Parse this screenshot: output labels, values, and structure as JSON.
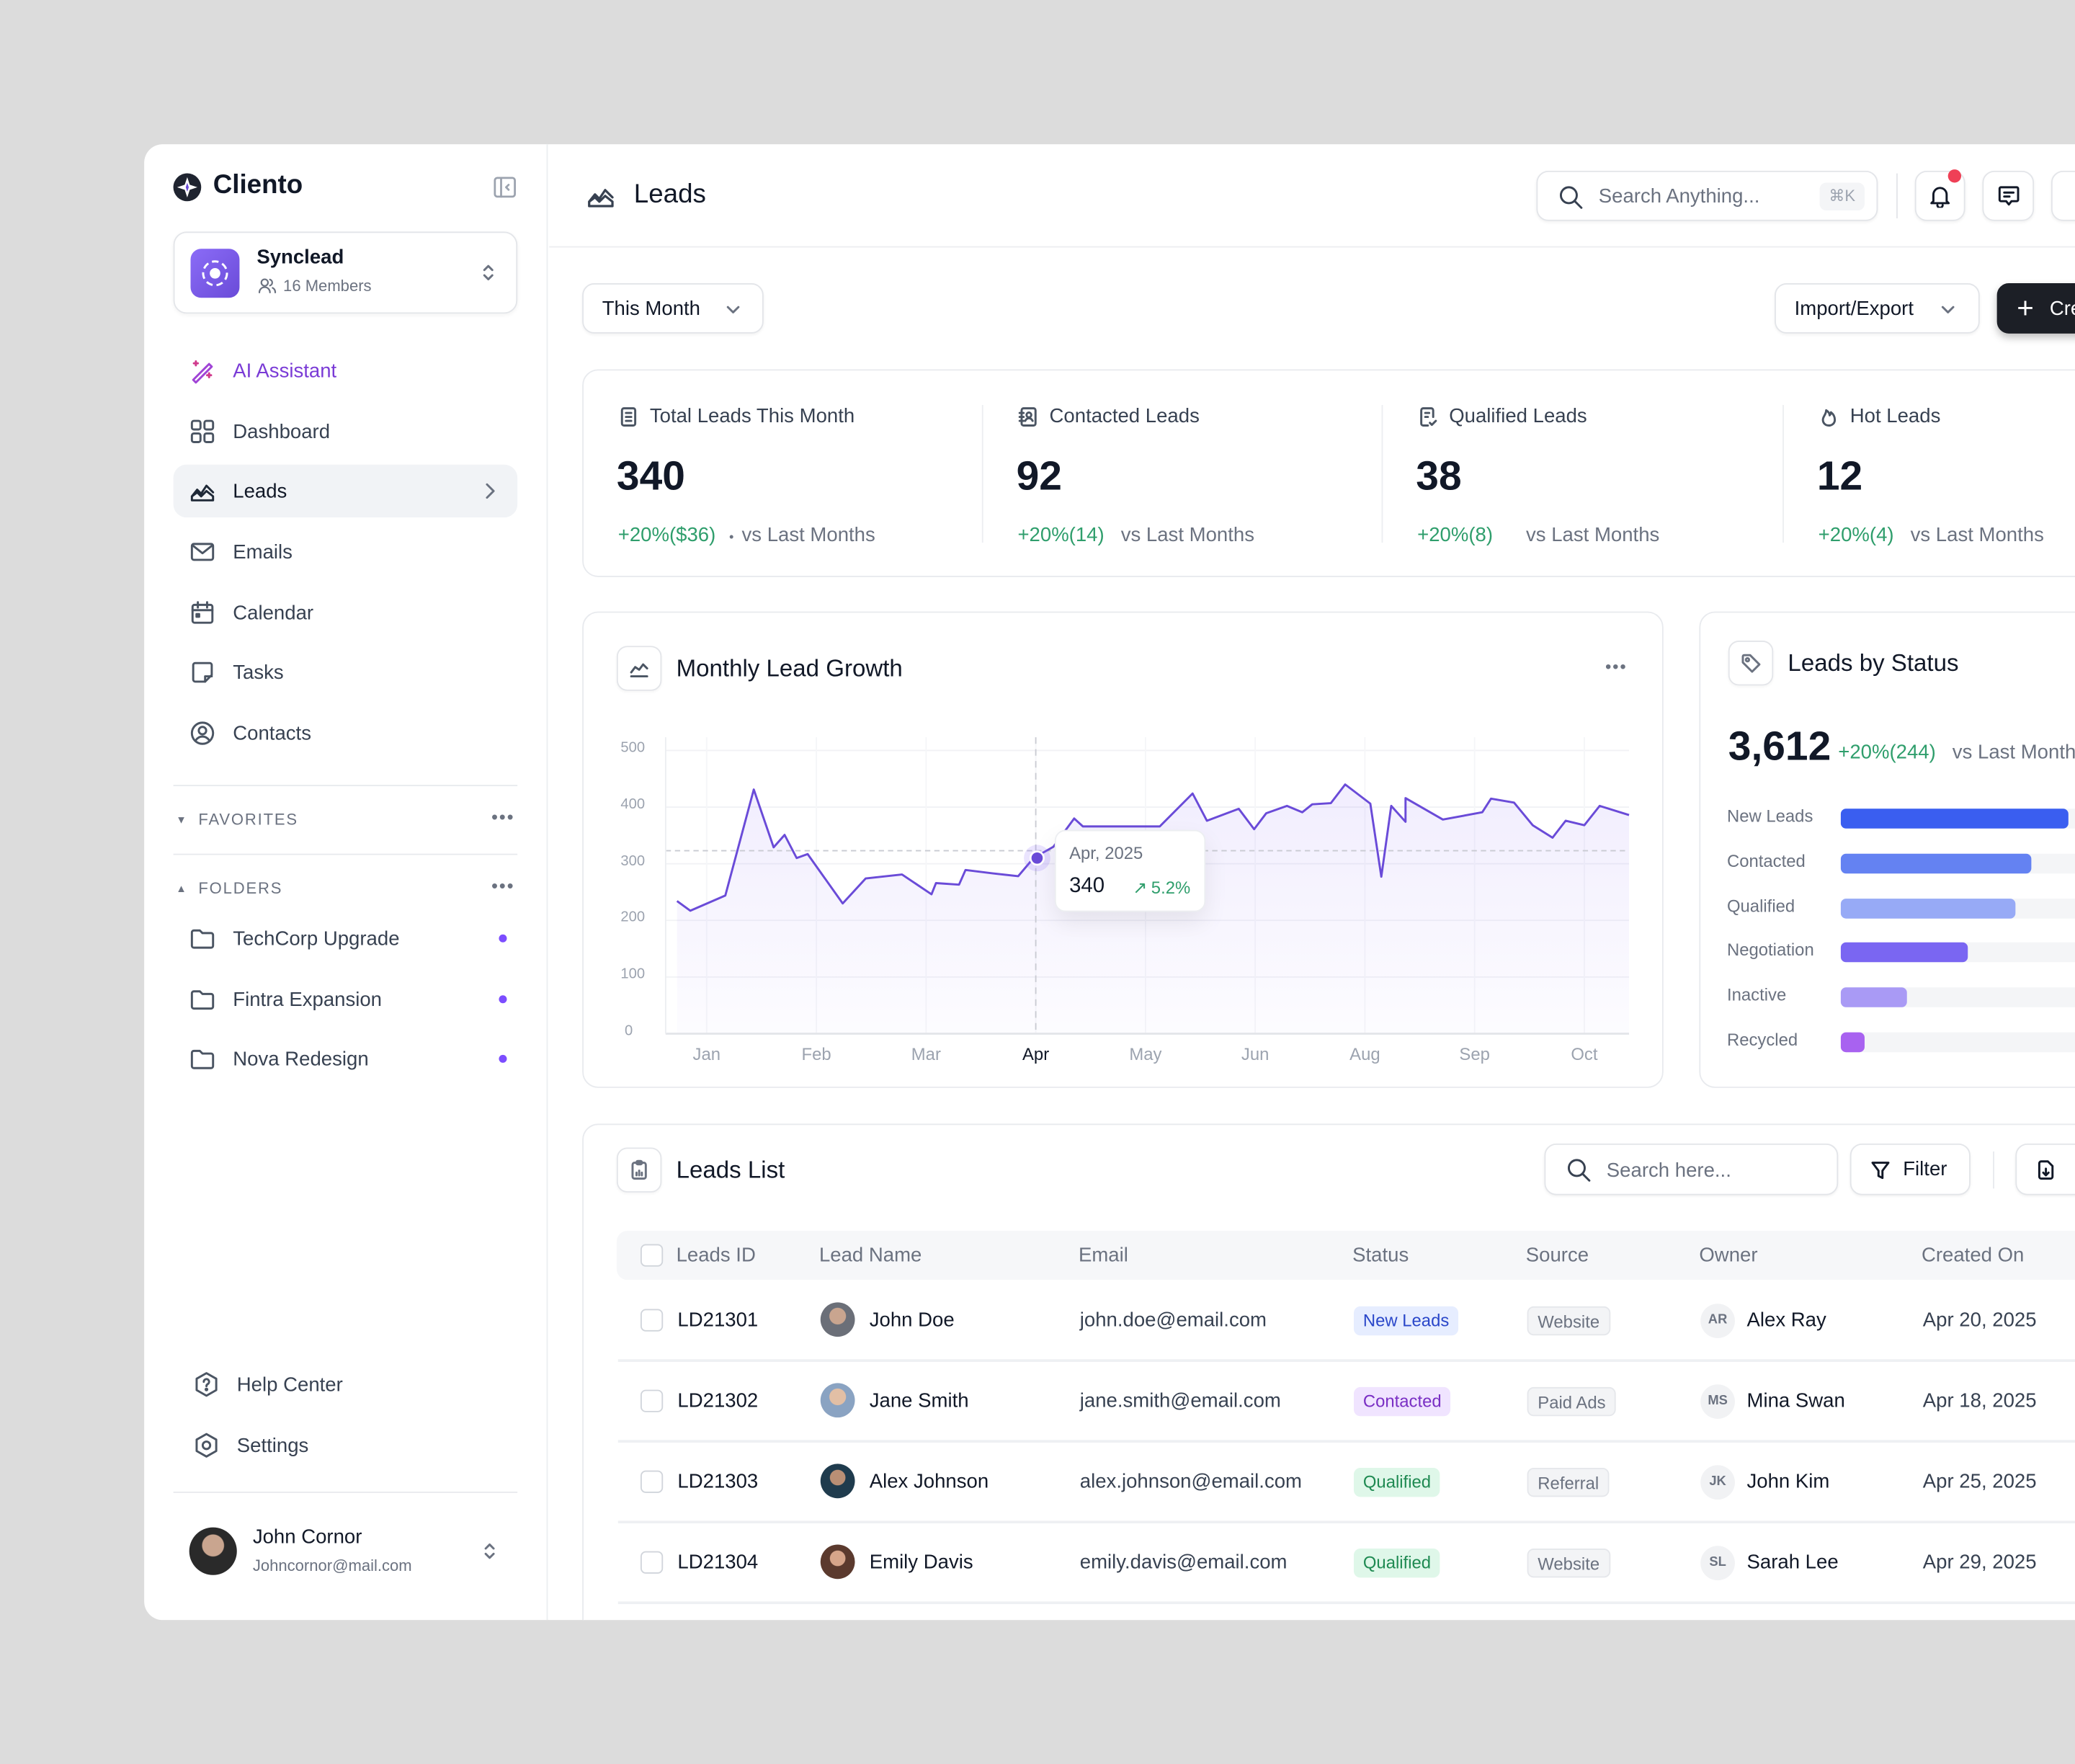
{
  "brand": {
    "name": "Cliento"
  },
  "workspace": {
    "name": "Synclead",
    "members": "16 Members"
  },
  "sidebar": {
    "items": [
      {
        "label": "AI Assistant",
        "icon": "magic-wand-icon"
      },
      {
        "label": "Dashboard",
        "icon": "grid-icon"
      },
      {
        "label": "Leads",
        "icon": "chart-area-icon"
      },
      {
        "label": "Emails",
        "icon": "mail-icon"
      },
      {
        "label": "Calendar",
        "icon": "calendar-icon"
      },
      {
        "label": "Tasks",
        "icon": "note-icon"
      },
      {
        "label": "Contacts",
        "icon": "user-circle-icon"
      }
    ],
    "favorites_label": "FAVORITES",
    "folders_label": "FOLDERS",
    "folders": [
      {
        "label": "TechCorp Upgrade"
      },
      {
        "label": "Fintra Expansion"
      },
      {
        "label": "Nova Redesign"
      }
    ],
    "help": "Help Center",
    "settings": "Settings",
    "user": {
      "name": "John Cornor",
      "email": "Johncornor@mail.com"
    }
  },
  "header": {
    "title": "Leads",
    "search_placeholder": "Search Anything...",
    "shortcut": "⌘K",
    "notification_color": "#ef4056"
  },
  "toolbar": {
    "period": "This Month",
    "import_export": "Import/Export",
    "create": "Create"
  },
  "stats": [
    {
      "label": "Total Leads This Month",
      "value": "340",
      "change": "+20%($36)",
      "bullet": "•",
      "suffix": "vs Last Months"
    },
    {
      "label": "Contacted Leads",
      "value": "92",
      "change": "+20%(14)",
      "suffix": "vs Last Months"
    },
    {
      "label": "Qualified Leads",
      "value": "38",
      "change": "+20%(8)",
      "suffix": "vs Last Months"
    },
    {
      "label": "Hot Leads",
      "value": "12",
      "change": "+20%(4)",
      "suffix": "vs Last Months"
    }
  ],
  "chart_data": [
    {
      "type": "area",
      "title": "Monthly Lead Growth",
      "x_ticks": [
        "Jan",
        "Feb",
        "Mar",
        "Apr",
        "May",
        "Jun",
        "Aug",
        "Sep",
        "Oct"
      ],
      "highlighted_tick": "Apr",
      "y_ticks": [
        0,
        100,
        200,
        300,
        400,
        500
      ],
      "ylim": [
        0,
        500
      ],
      "grid": true,
      "color": "#6a4bd8",
      "reference_value": 323,
      "points_month_index_value": [
        [
          -0.27,
          234
        ],
        [
          -0.15,
          217
        ],
        [
          0.17,
          244
        ],
        [
          0.43,
          431
        ],
        [
          0.61,
          329
        ],
        [
          0.71,
          351
        ],
        [
          0.82,
          310
        ],
        [
          0.92,
          317
        ],
        [
          1.24,
          230
        ],
        [
          1.45,
          274
        ],
        [
          1.78,
          281
        ],
        [
          2.05,
          246
        ],
        [
          2.09,
          266
        ],
        [
          2.3,
          263
        ],
        [
          2.36,
          289
        ],
        [
          2.61,
          283
        ],
        [
          2.84,
          278
        ],
        [
          2.98,
          310
        ],
        [
          3.16,
          330
        ],
        [
          3.35,
          380
        ],
        [
          3.43,
          366
        ],
        [
          4.13,
          366
        ],
        [
          4.43,
          424
        ],
        [
          4.56,
          376
        ],
        [
          4.85,
          397
        ],
        [
          4.99,
          361
        ],
        [
          5.1,
          389
        ],
        [
          5.29,
          402
        ],
        [
          5.43,
          391
        ],
        [
          5.52,
          405
        ],
        [
          5.69,
          407
        ],
        [
          5.82,
          440
        ],
        [
          6.05,
          406
        ],
        [
          6.15,
          277
        ],
        [
          6.24,
          402
        ],
        [
          6.37,
          374
        ],
        [
          6.37,
          416
        ],
        [
          6.71,
          378
        ],
        [
          7.07,
          391
        ],
        [
          7.15,
          415
        ],
        [
          7.36,
          408
        ],
        [
          7.53,
          368
        ],
        [
          7.71,
          346
        ],
        [
          7.83,
          376
        ],
        [
          8.0,
          368
        ],
        [
          8.14,
          402
        ],
        [
          8.41,
          386
        ]
      ],
      "tooltip": {
        "date": "Apr, 2025",
        "value": "340",
        "change": "5.2%"
      }
    },
    {
      "type": "bar",
      "orientation": "horizontal",
      "title": "Leads by Status",
      "total": "3,612",
      "change": "+20%(244)",
      "suffix": "vs Last Month",
      "categories": [
        "New Leads",
        "Contacted",
        "Qualified",
        "Negotiation",
        "Inactive",
        "Recycled"
      ],
      "values_percent": [
        86,
        72,
        66,
        48,
        25,
        9
      ],
      "colors": [
        "#3a5ef0",
        "#6482f2",
        "#97aaf6",
        "#7a66f2",
        "#a99af5",
        "#a862f0"
      ]
    }
  ],
  "leads_list": {
    "title": "Leads List",
    "search_placeholder": "Search here...",
    "filter": "Filter",
    "columns": [
      "Leads ID",
      "Lead Name",
      "Email",
      "Status",
      "Source",
      "Owner",
      "Created On"
    ],
    "rows": [
      {
        "id": "LD21301",
        "name": "John Doe",
        "email": "john.doe@email.com",
        "status": "New Leads",
        "source": "Website",
        "owner_initials": "AR",
        "owner": "Alex Ray",
        "created": "Apr 20, 2025"
      },
      {
        "id": "LD21302",
        "name": "Jane Smith",
        "email": "jane.smith@email.com",
        "status": "Contacted",
        "source": "Paid Ads",
        "owner_initials": "MS",
        "owner": "Mina Swan",
        "created": "Apr 18, 2025"
      },
      {
        "id": "LD21303",
        "name": "Alex Johnson",
        "email": "alex.johnson@email.com",
        "status": "Qualified",
        "source": "Referral",
        "owner_initials": "JK",
        "owner": "John Kim",
        "created": "Apr 25, 2025"
      },
      {
        "id": "LD21304",
        "name": "Emily Davis",
        "email": "emily.davis@email.com",
        "status": "Qualified",
        "source": "Website",
        "owner_initials": "SL",
        "owner": "Sarah Lee",
        "created": "Apr 29, 2025"
      }
    ],
    "status_colors": {
      "New Leads": [
        "#e6edff",
        "#2a47c9"
      ],
      "Contacted": [
        "#f0e4ff",
        "#7a2fc4"
      ],
      "Qualified": [
        "#dff7e9",
        "#1f8a52"
      ]
    }
  }
}
